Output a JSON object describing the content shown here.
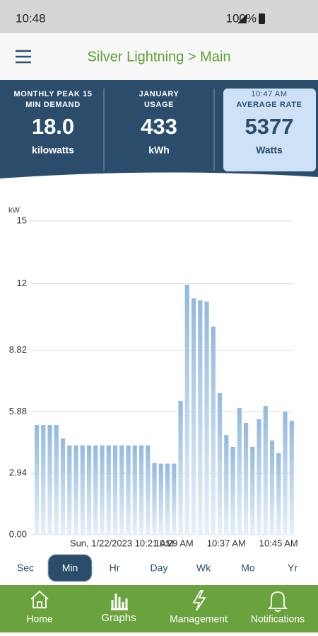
{
  "status_bar": {
    "time": "10:48",
    "battery": "100%"
  },
  "header": {
    "title": "Silver Lightning > Main"
  },
  "stats": [
    {
      "label_lines": [
        "MONTHLY PEAK 15",
        "MIN DEMAND"
      ],
      "value": "18.0",
      "unit": "kilowatts"
    },
    {
      "label_lines": [
        "JANUARY",
        "USAGE"
      ],
      "value": "433",
      "unit": "kWh"
    },
    {
      "label_lines": [
        "10:47 AM",
        "AVERAGE RATE"
      ],
      "value": "5377",
      "unit": "Watts"
    }
  ],
  "chart_data": {
    "type": "bar",
    "y_label": "kW",
    "color": "#93b9de",
    "categories": [
      null,
      null,
      null,
      null,
      null,
      null,
      null,
      null,
      null,
      null,
      null,
      null,
      null,
      "Sun, 1/22/2023 10:21 AM",
      null,
      null,
      null,
      null,
      null,
      null,
      null,
      "10:29 AM",
      null,
      null,
      null,
      null,
      null,
      null,
      null,
      "10:37 AM",
      null,
      null,
      null,
      null,
      null,
      null,
      null,
      "10:45 AM",
      null,
      null
    ],
    "values": [
      5.25,
      5.25,
      5.25,
      5.25,
      4.6,
      4.27,
      4.27,
      4.27,
      4.27,
      4.27,
      4.27,
      4.27,
      4.27,
      4.27,
      4.27,
      4.27,
      4.27,
      4.27,
      3.42,
      3.4,
      3.4,
      3.4,
      6.4,
      11.95,
      11.3,
      11.2,
      11.15,
      9.95,
      6.77,
      4.77,
      4.2,
      6.06,
      5.35,
      4.2,
      5.52,
      6.16,
      4.5,
      3.9,
      5.89,
      5.45
    ],
    "ylim": [
      0,
      15
    ],
    "yticks": [
      {
        "value": 0,
        "label": "0.00"
      },
      2.94,
      5.88,
      8.82,
      12,
      15
    ],
    "grid": true
  },
  "tabs": {
    "items": [
      "Sec",
      "Min",
      "Hr",
      "Day",
      "Wk",
      "Mo",
      "Yr"
    ],
    "selected": 1
  },
  "nav": [
    "Home",
    "Graphs",
    "Management",
    "Notifications"
  ]
}
